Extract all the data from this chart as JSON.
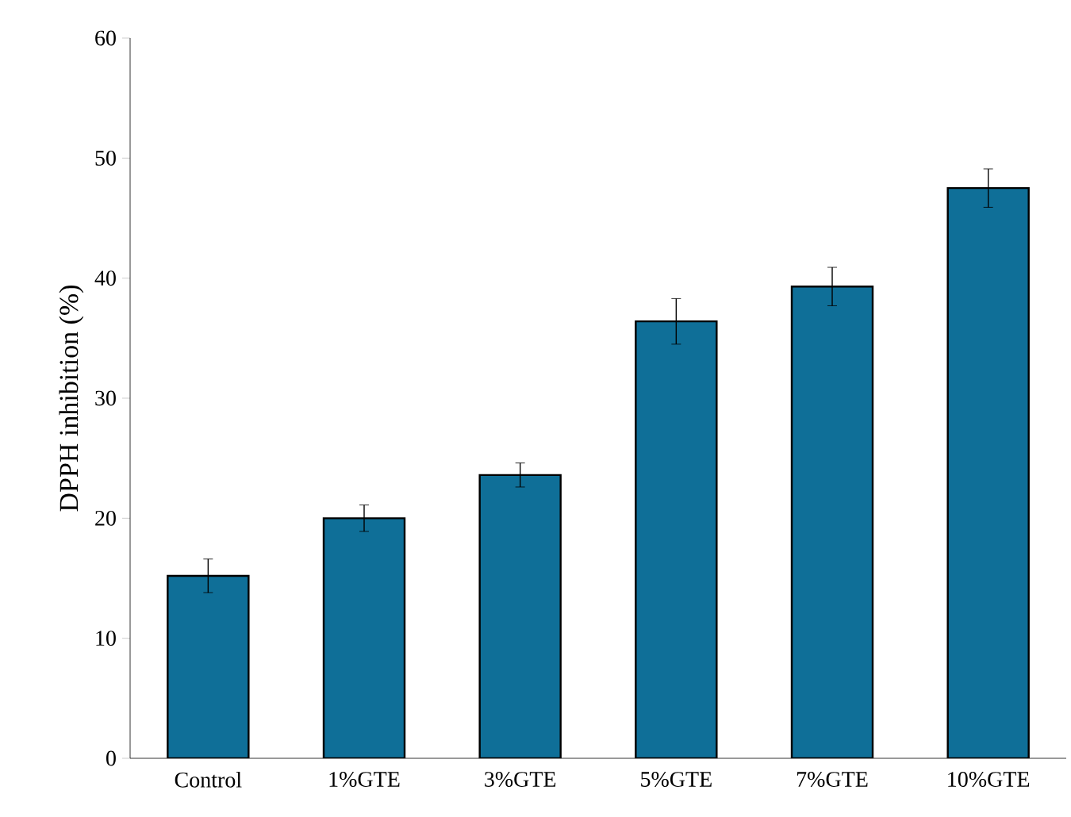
{
  "chart_data": {
    "type": "bar",
    "ylabel": "DPPH  inhibition (%)",
    "categories": [
      "Control",
      "1%GTE",
      "3%GTE",
      "5%GTE",
      "7%GTE",
      "10%GTE"
    ],
    "values": [
      15.2,
      20.0,
      23.6,
      36.4,
      39.3,
      47.5
    ],
    "errors": [
      1.4,
      1.1,
      1.0,
      1.9,
      1.6,
      1.6
    ],
    "color": "#0f6f98",
    "ylim": [
      0,
      60
    ],
    "yticks": [
      0,
      10,
      20,
      30,
      40,
      50,
      60
    ],
    "grid": false
  }
}
